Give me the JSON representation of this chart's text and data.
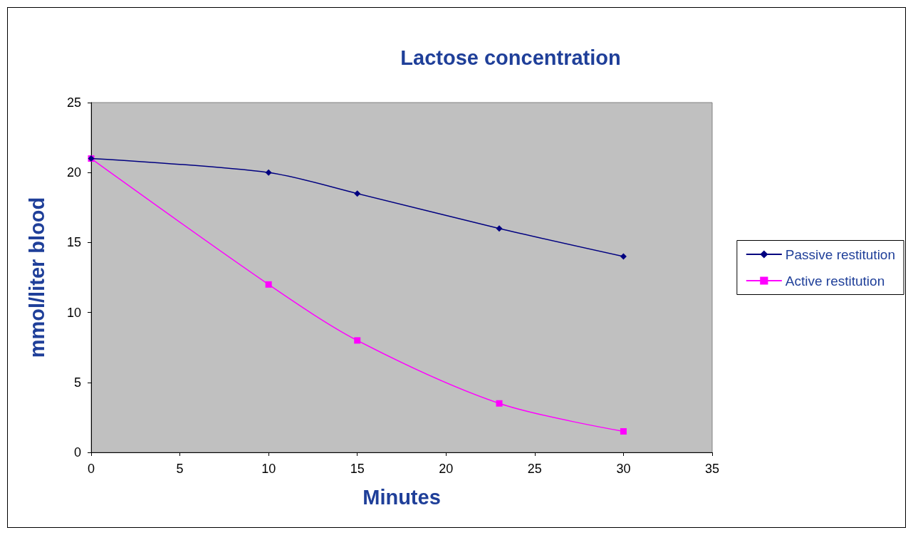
{
  "chart_data": {
    "type": "line",
    "title": "Lactose concentration",
    "xlabel": "Minutes",
    "ylabel": "mmol/liter blood",
    "series": [
      {
        "name": "Passive restitution",
        "color": "#000080",
        "marker": "diamond",
        "x": [
          0,
          10,
          15,
          23,
          30
        ],
        "values": [
          21,
          20,
          18.5,
          16,
          14
        ]
      },
      {
        "name": "Active restitution",
        "color": "#ff00ff",
        "marker": "square",
        "x": [
          0,
          10,
          15,
          23,
          30
        ],
        "values": [
          21,
          12,
          8,
          3.5,
          1.5
        ]
      }
    ],
    "xlim": [
      0,
      35
    ],
    "xticks": [
      0,
      5,
      10,
      15,
      20,
      25,
      30,
      35
    ],
    "ylim": [
      0,
      25
    ],
    "yticks": [
      0,
      5,
      10,
      15,
      20,
      25
    ],
    "grid": false,
    "legend": "right"
  }
}
